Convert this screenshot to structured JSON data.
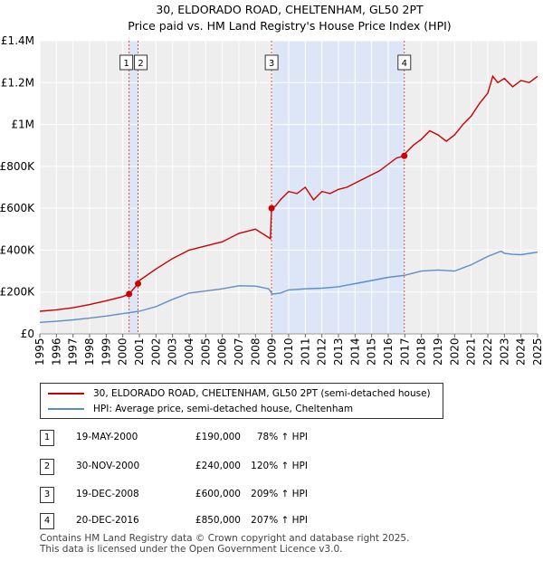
{
  "chart_data": {
    "type": "line",
    "title": "30, ELDORADO ROAD, CHELTENHAM, GL50 2PT",
    "subtitle": "Price paid vs. HM Land Registry's House Price Index (HPI)",
    "xlim": [
      1995,
      2025
    ],
    "ylim": [
      0,
      1400000
    ],
    "x_ticks": [
      "1995",
      "1996",
      "1997",
      "1998",
      "1999",
      "2000",
      "2001",
      "2002",
      "2003",
      "2004",
      "2005",
      "2006",
      "2007",
      "2008",
      "2009",
      "2010",
      "2011",
      "2012",
      "2013",
      "2014",
      "2015",
      "2016",
      "2017",
      "2018",
      "2019",
      "2020",
      "2021",
      "2022",
      "2023",
      "2024",
      "2025"
    ],
    "y_ticks": [
      {
        "value": 0,
        "label": "£0"
      },
      {
        "value": 200000,
        "label": "£200K"
      },
      {
        "value": 400000,
        "label": "£400K"
      },
      {
        "value": 600000,
        "label": "£600K"
      },
      {
        "value": 800000,
        "label": "£800K"
      },
      {
        "value": 1000000,
        "label": "£1M"
      },
      {
        "value": 1200000,
        "label": "£1.2M"
      },
      {
        "value": 1400000,
        "label": "£1.4M"
      }
    ],
    "shaded_periods": [
      [
        2000.38,
        2000.92
      ],
      [
        2008.97,
        2016.97
      ]
    ],
    "series": [
      {
        "name": "30, ELDORADO ROAD, CHELTENHAM, GL50 2PT (semi-detached house)",
        "color": "#cc0000",
        "x": [
          1995,
          1996,
          1997,
          1998,
          1999,
          2000,
          2000.38,
          2000.92,
          2001,
          2002,
          2003,
          2004,
          2005,
          2006,
          2007,
          2008,
          2008.9,
          2008.97,
          2009.2,
          2009.5,
          2010,
          2010.5,
          2011,
          2011.5,
          2012,
          2012.5,
          2013,
          2013.5,
          2014,
          2014.5,
          2015,
          2015.5,
          2016,
          2016.5,
          2016.97,
          2017,
          2017.5,
          2018,
          2018.5,
          2019,
          2019.5,
          2020,
          2020.5,
          2021,
          2021.5,
          2022,
          2022.3,
          2022.6,
          2023,
          2023.5,
          2024,
          2024.5,
          2025
        ],
        "values": [
          108000,
          115000,
          125000,
          140000,
          158000,
          178000,
          190000,
          240000,
          255000,
          310000,
          360000,
          400000,
          420000,
          440000,
          480000,
          500000,
          455000,
          600000,
          610000,
          640000,
          680000,
          670000,
          700000,
          640000,
          680000,
          670000,
          690000,
          700000,
          720000,
          740000,
          760000,
          780000,
          810000,
          840000,
          850000,
          860000,
          900000,
          930000,
          970000,
          950000,
          920000,
          950000,
          1000000,
          1040000,
          1100000,
          1150000,
          1230000,
          1200000,
          1220000,
          1180000,
          1210000,
          1200000,
          1230000
        ]
      },
      {
        "name": "HPI: Average price, semi-detached house, Cheltenham",
        "color": "#5b8ec9",
        "x": [
          1995,
          1996,
          1997,
          1998,
          1999,
          2000,
          2001,
          2002,
          2003,
          2004,
          2005,
          2006,
          2007,
          2008,
          2008.8,
          2009,
          2009.5,
          2010,
          2011,
          2012,
          2013,
          2014,
          2015,
          2016,
          2017,
          2018,
          2019,
          2020,
          2021,
          2022,
          2022.8,
          2023,
          2023.5,
          2024,
          2025
        ],
        "values": [
          55000,
          60000,
          67000,
          75000,
          85000,
          97000,
          108000,
          130000,
          165000,
          195000,
          205000,
          215000,
          230000,
          228000,
          215000,
          190000,
          195000,
          210000,
          215000,
          218000,
          225000,
          240000,
          255000,
          270000,
          280000,
          300000,
          305000,
          300000,
          330000,
          370000,
          395000,
          385000,
          380000,
          378000,
          390000
        ]
      }
    ],
    "sales": [
      {
        "id": "1",
        "x": 2000.38,
        "value": 190000
      },
      {
        "id": "2",
        "x": 2000.92,
        "value": 240000
      },
      {
        "id": "3",
        "x": 2008.97,
        "value": 600000
      },
      {
        "id": "4",
        "x": 2016.97,
        "value": 850000
      }
    ]
  },
  "legend": {
    "property_label": "30, ELDORADO ROAD, CHELTENHAM, GL50 2PT (semi-detached house)",
    "hpi_label": "HPI: Average price, semi-detached house, Cheltenham",
    "property_color": "#cc0000",
    "hpi_color": "#5b8ec9"
  },
  "sales_table": [
    {
      "id": "1",
      "date": "19-MAY-2000",
      "price": "£190,000",
      "hpi": "78% ↑ HPI"
    },
    {
      "id": "2",
      "date": "30-NOV-2000",
      "price": "£240,000",
      "hpi": "120% ↑ HPI"
    },
    {
      "id": "3",
      "date": "19-DEC-2008",
      "price": "£600,000",
      "hpi": "209% ↑ HPI"
    },
    {
      "id": "4",
      "date": "20-DEC-2016",
      "price": "£850,000",
      "hpi": "207% ↑ HPI"
    }
  ],
  "footer": {
    "line1": "Contains HM Land Registry data © Crown copyright and database right 2025.",
    "line2": "This data is licensed under the Open Government Licence v3.0."
  }
}
